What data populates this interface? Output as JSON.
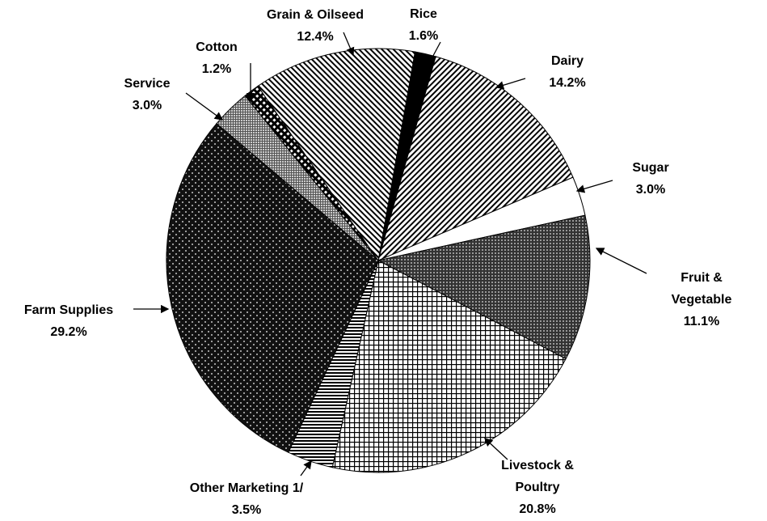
{
  "chart_data": {
    "type": "pie",
    "categories": [
      "Rice",
      "Dairy",
      "Sugar",
      "Fruit & Vegetable",
      "Livestock & Poultry",
      "Other Marketing 1/",
      "Farm Supplies",
      "Service",
      "Cotton",
      "Grain & Oilseed"
    ],
    "values": [
      1.6,
      14.2,
      3.0,
      11.1,
      20.8,
      3.5,
      29.2,
      3.0,
      1.2,
      12.4
    ],
    "value_labels": [
      "1.6%",
      "14.2%",
      "3.0%",
      "11.1%",
      "20.8%",
      "3.5%",
      "29.2%",
      "3.0%",
      "1.2%",
      "12.4%"
    ]
  }
}
